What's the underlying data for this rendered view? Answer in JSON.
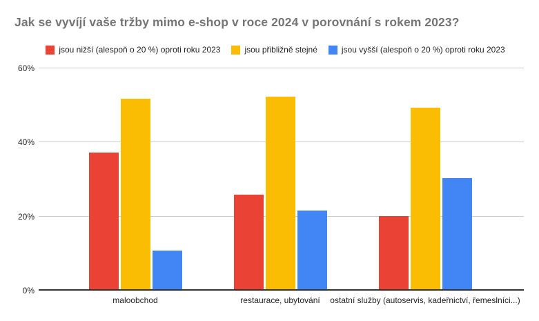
{
  "title": "Jak se vyvíjí vaše tržby mimo e-shop v roce 2024 v porovnání s rokem 2023?",
  "colors": {
    "title": "#757575",
    "text": "#222222",
    "gridline": "#cccccc",
    "axis_line": "#333333",
    "background": "#ffffff"
  },
  "chart_data": {
    "type": "bar",
    "title": "Jak se vyvíjí vaše tržby mimo e-shop v roce 2024 v porovnání s rokem 2023?",
    "categories": [
      "maloobchod",
      "restaurace, ubytování",
      "ostatní služby (autoservis, kadeřnictví, řemeslníci...)"
    ],
    "series": [
      {
        "name": "jsou nižší (alespoň o 20 %) oproti roku 2023",
        "color": "#EA4335",
        "values": [
          37.3,
          25.9,
          20.2
        ]
      },
      {
        "name": "jsou přibližně stejné",
        "color": "#FBBC04",
        "values": [
          51.8,
          52.3,
          49.3
        ]
      },
      {
        "name": "jsou vyšší (alespoň o 20 %) oproti roku 2023",
        "color": "#4285F4",
        "values": [
          10.9,
          21.7,
          30.4
        ]
      }
    ],
    "xlabel": "",
    "ylabel": "",
    "ylim": [
      0,
      60
    ],
    "yticks": [
      "0%",
      "20%",
      "40%",
      "60%"
    ],
    "ytick_values": [
      0,
      20,
      40,
      60
    ],
    "grid": true,
    "legend_position": "top",
    "value_unit": "%"
  }
}
